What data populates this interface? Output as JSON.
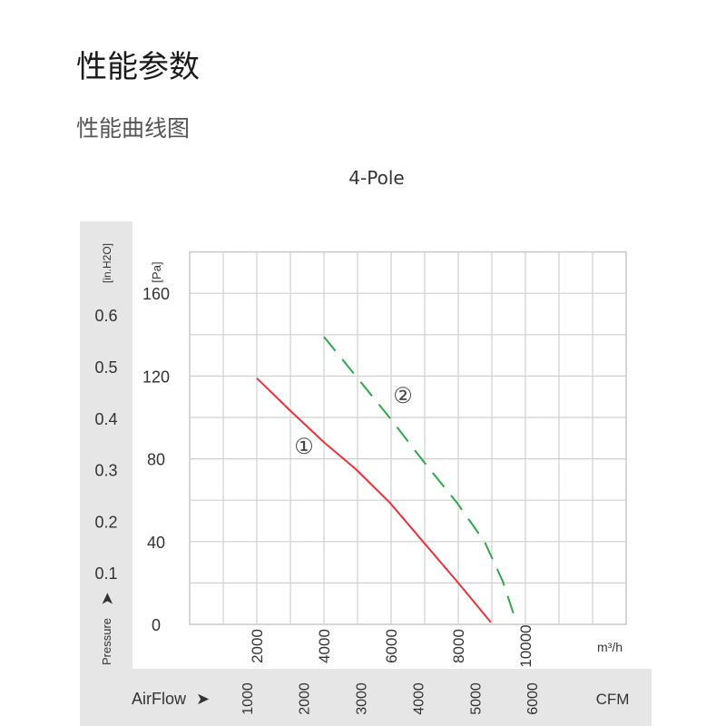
{
  "page": {
    "title": "性能参数",
    "subtitle": "性能曲线图"
  },
  "chart_data": {
    "type": "line",
    "title": "4-Pole",
    "x_axis": {
      "label": "m³/h",
      "range": [
        0,
        13000
      ],
      "ticks": [
        2000,
        4000,
        6000,
        8000,
        10000
      ],
      "tick_labels": [
        "2000",
        "4000",
        "6000",
        "8000",
        "10000"
      ]
    },
    "x2_axis": {
      "label": "CFM",
      "prefix": "AirFlow",
      "ticks": [
        1000,
        2000,
        3000,
        4000,
        5000,
        6000
      ],
      "tick_labels": [
        "1000",
        "2000",
        "3000",
        "4000",
        "5000",
        "6000"
      ]
    },
    "y_axis": {
      "label": "[Pa]",
      "range": [
        0,
        180
      ],
      "ticks": [
        0,
        40,
        80,
        120,
        160
      ],
      "tick_labels": [
        "0",
        "40",
        "80",
        "120",
        "160"
      ]
    },
    "y2_axis": {
      "label": "[in.H2O]",
      "prefix": "Pressure",
      "ticks": [
        0.1,
        0.2,
        0.3,
        0.4,
        0.5,
        0.6
      ],
      "tick_labels": [
        "0.1",
        "0.2",
        "0.3",
        "0.4",
        "0.5",
        "0.6"
      ]
    },
    "grid": true,
    "series": [
      {
        "name": "①",
        "color": "#e8333a",
        "style": "solid",
        "x": [
          2000,
          2950,
          4000,
          4950,
          5950,
          6950,
          7950,
          8970
        ],
        "y": [
          119,
          104,
          88,
          75,
          59,
          40,
          21,
          1
        ]
      },
      {
        "name": "②",
        "color": "#2ea84a",
        "style": "dashed",
        "x": [
          4000,
          5000,
          6000,
          7000,
          7950,
          8780,
          9320,
          9730
        ],
        "y": [
          139,
          119,
          99,
          78,
          59,
          40,
          21,
          1
        ]
      }
    ]
  }
}
